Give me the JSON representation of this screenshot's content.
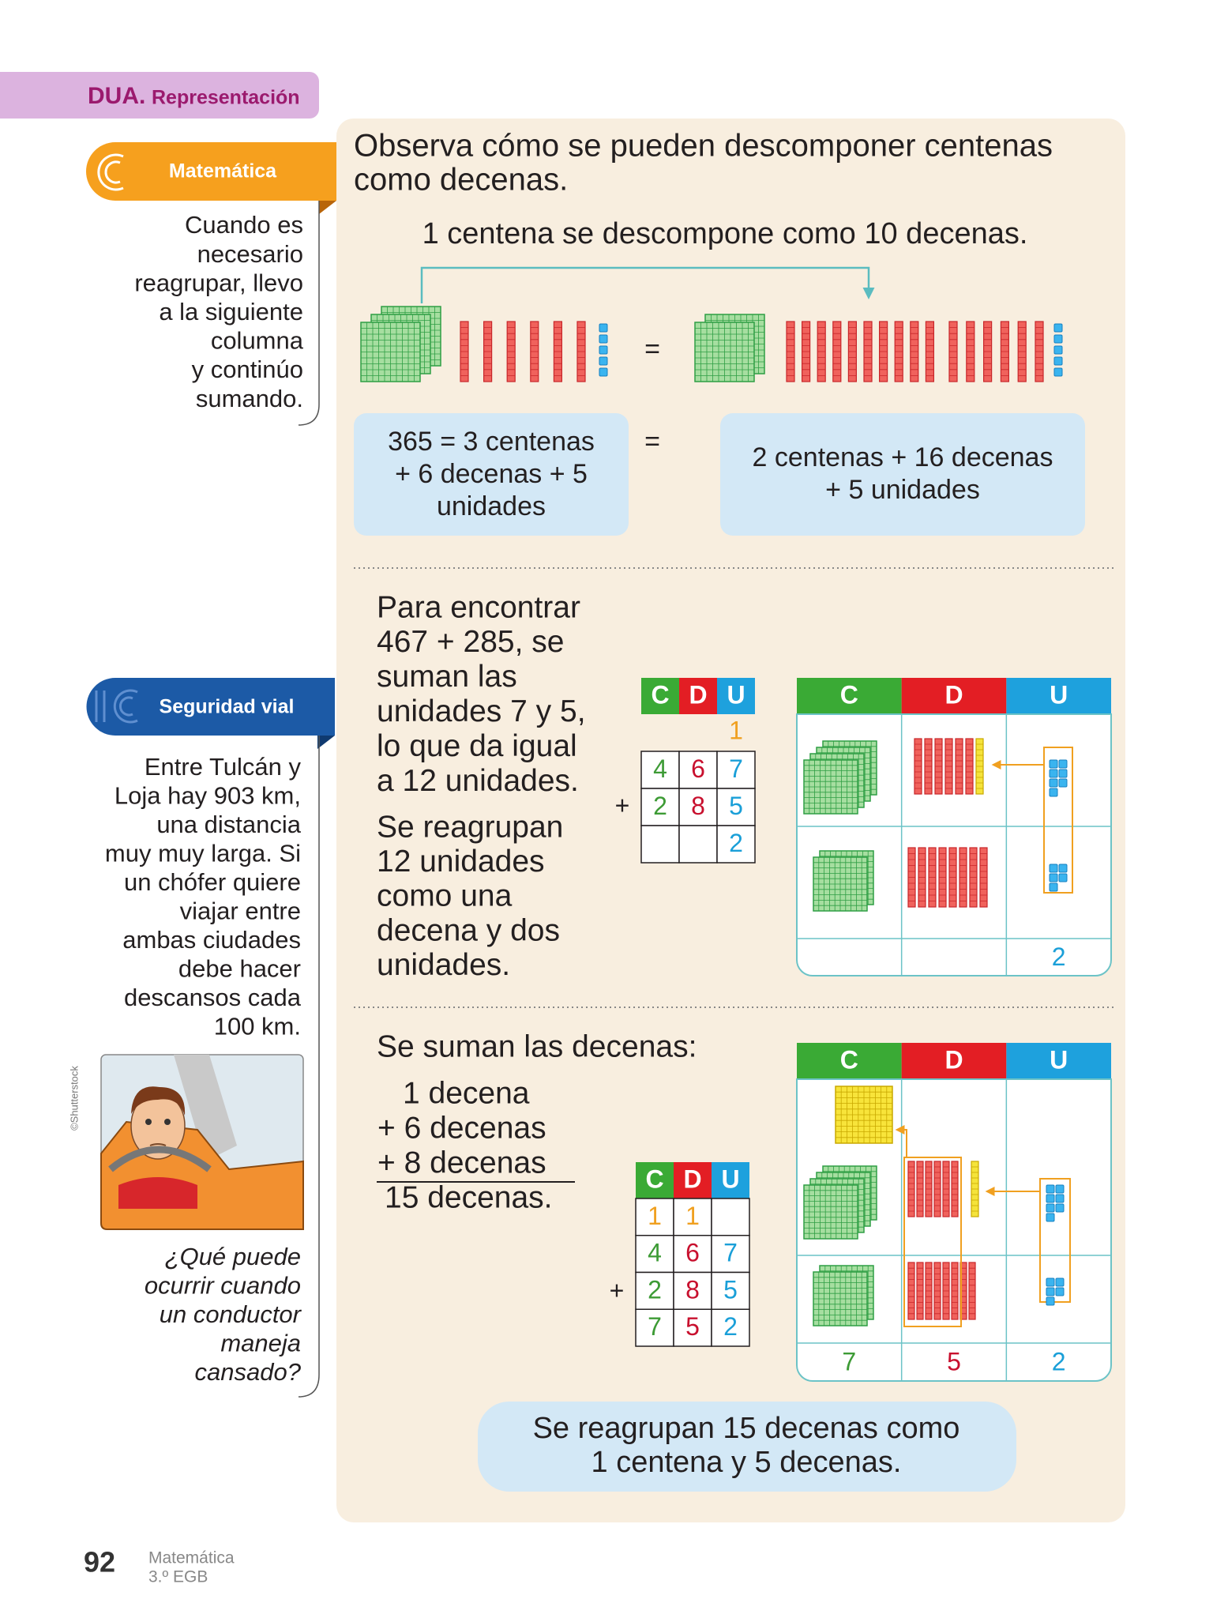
{
  "dua": {
    "label": "DUA.",
    "title": "Representación"
  },
  "sidebar": {
    "math_note": {
      "tag": "Matemática",
      "lines": [
        "Cuando es",
        "necesario",
        "reagrupar, llevo",
        "a la siguiente",
        "columna",
        "y continúo",
        "sumando."
      ]
    },
    "road_note": {
      "tag": "Seguridad vial",
      "lines": [
        "Entre Tulcán y",
        "Loja hay 903 km,",
        "una distancia",
        "muy muy larga. Si",
        "un chófer quiere",
        "viajar entre",
        "ambas ciudades",
        "debe hacer",
        "descansos cada",
        "100 km."
      ],
      "credit": "©Shutterstock",
      "question": [
        "¿Qué puede",
        "ocurrir cuando",
        "un conductor",
        "maneja",
        "cansado?"
      ]
    }
  },
  "section1": {
    "intro": [
      "Observa cómo se pueden descomponer centenas",
      "como decenas."
    ],
    "statement": "1 centena se descompone como 10 decenas.",
    "equals": "=",
    "left_box": [
      "365 = 3 centenas",
      "+ 6 decenas + 5",
      "unidades"
    ],
    "right_box": [
      "2 centenas + 16 decenas",
      "+ 5 unidades"
    ]
  },
  "section2": {
    "text": [
      "Para encontrar",
      "467 + 285, se",
      "suman las",
      "unidades 7 y 5,",
      "lo que da igual",
      "a 12 unidades."
    ],
    "text2": [
      "Se reagrupan",
      "12 unidades",
      "como una",
      "decena y dos",
      "unidades."
    ],
    "table": {
      "header": [
        "C",
        "D",
        "U"
      ],
      "carry": [
        null,
        null,
        "1"
      ],
      "rows": [
        [
          "4",
          "6",
          "7"
        ],
        [
          "2",
          "8",
          "5"
        ],
        [
          null,
          null,
          "2"
        ]
      ],
      "plus": "+"
    },
    "blocks": {
      "header": [
        "C",
        "D",
        "U"
      ],
      "result": [
        null,
        null,
        "2"
      ]
    }
  },
  "section3": {
    "intro": "Se suman las decenas:",
    "sum": [
      "1 decena",
      "+ 6 decenas",
      "+ 8 decenas",
      "15 decenas."
    ],
    "table": {
      "header": [
        "C",
        "D",
        "U"
      ],
      "rows": [
        [
          "1",
          "1",
          null
        ],
        [
          "4",
          "6",
          "7"
        ],
        [
          "2",
          "8",
          "5"
        ],
        [
          "7",
          "5",
          "2"
        ]
      ],
      "plus": "+"
    },
    "blocks": {
      "header": [
        "C",
        "D",
        "U"
      ],
      "result": [
        "7",
        "5",
        "2"
      ]
    },
    "conclusion": [
      "Se reagrupan 15 decenas como",
      "1 centena y 5 decenas."
    ]
  },
  "footer": {
    "page": "92",
    "subject": "Matemática",
    "grade": "3.º EGB"
  }
}
